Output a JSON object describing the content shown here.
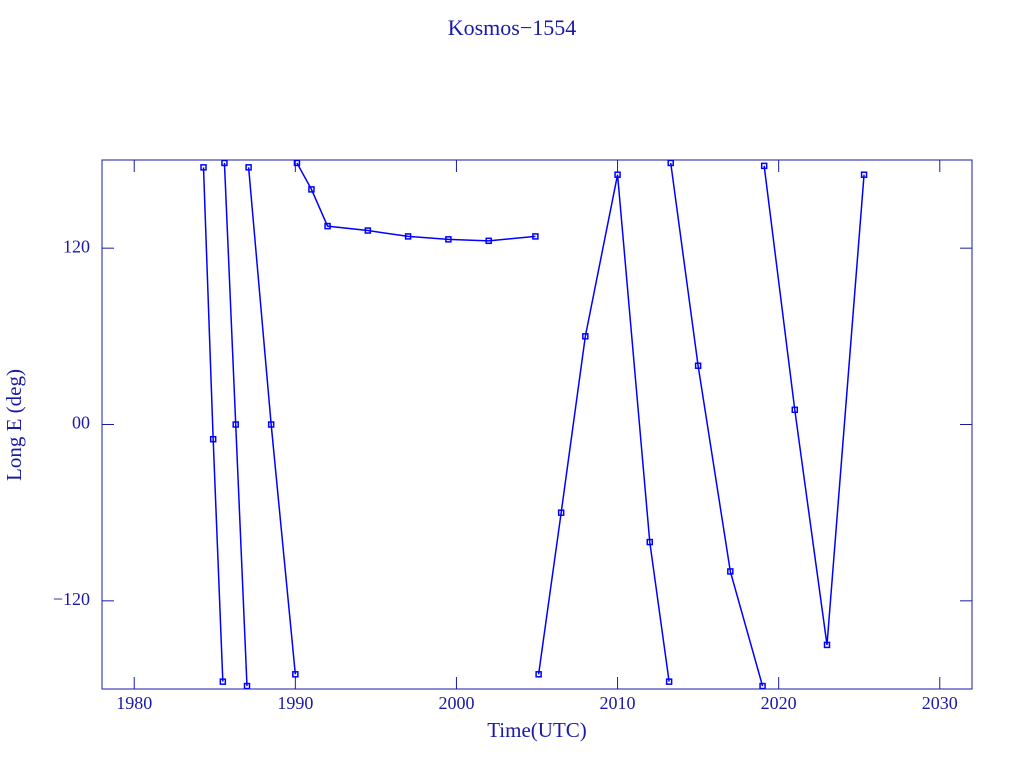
{
  "chart_data": {
    "type": "line",
    "title": "Kosmos−1554",
    "x_label": "Time(UTC)",
    "y_label": "Long E (deg)",
    "series": [
      {
        "name": "Kosmos−1554",
        "color": "#0000ff",
        "x": [
          1984.3,
          1984.9,
          1985.5,
          1985.55,
          1985.6,
          1986.3,
          1987.0,
          1987.05,
          1987.1,
          1988.5,
          1990.0,
          1990.05,
          1990.1,
          1991.0,
          1992.0,
          1994.5,
          1997.0,
          1999.5,
          2002.0,
          2004.9,
          2004.95,
          2005.1,
          2006.5,
          2008.0,
          2010.0,
          2012.0,
          2013.2,
          2013.25,
          2013.3,
          2015.0,
          2017.0,
          2019.0,
          2019.05,
          2019.1,
          2021.0,
          2023.0,
          2025.3
        ],
        "values": [
          175,
          -10,
          -175,
          null,
          178,
          0,
          -178,
          null,
          175,
          0,
          -170,
          null,
          178,
          160,
          135,
          132,
          128,
          126,
          125,
          128,
          null,
          -170,
          -60,
          60,
          170,
          -80,
          -175,
          null,
          178,
          40,
          -100,
          -178,
          null,
          176,
          10,
          -150,
          170
        ]
      }
    ],
    "xlim": [
      1978,
      2032
    ],
    "xticks": [
      1980,
      1990,
      2000,
      2010,
      2020,
      2030
    ],
    "ylim": [
      -180,
      180
    ],
    "yticks": [
      {
        "value": -120,
        "label": "−120"
      },
      {
        "value": 0,
        "label": "00"
      },
      120
    ]
  }
}
